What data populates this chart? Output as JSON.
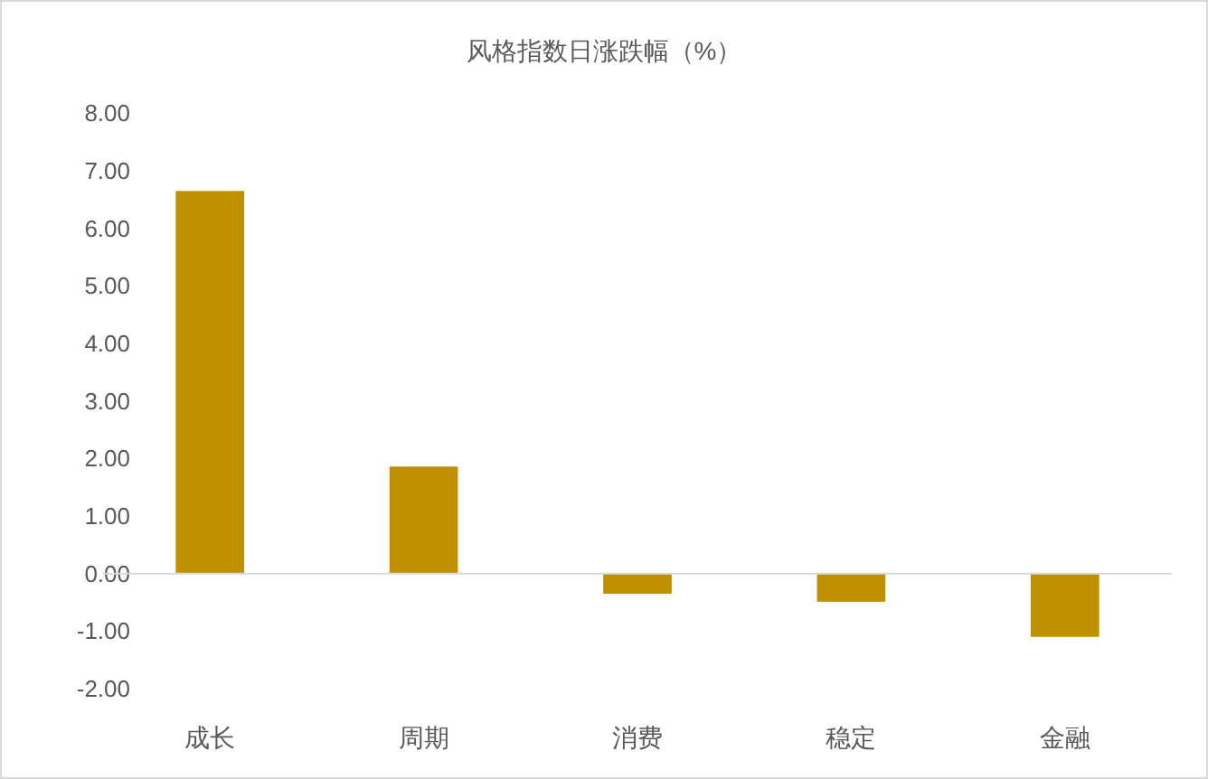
{
  "chart_data": {
    "type": "bar",
    "title": "风格指数日涨跌幅（%）",
    "categories": [
      "成长",
      "周期",
      "消费",
      "稳定",
      "金融"
    ],
    "values": [
      6.65,
      1.86,
      -0.35,
      -0.49,
      -1.1
    ],
    "color": "#bf9000",
    "ylim": [
      -2,
      8
    ],
    "yticks": [
      {
        "value": -2,
        "label": "-2.00"
      },
      {
        "value": -1,
        "label": "-1.00"
      },
      {
        "value": 0,
        "label": "0.00"
      },
      {
        "value": 1,
        "label": "1.00"
      },
      {
        "value": 2,
        "label": "2.00"
      },
      {
        "value": 3,
        "label": "3.00"
      },
      {
        "value": 4,
        "label": "4.00"
      },
      {
        "value": 5,
        "label": "5.00"
      },
      {
        "value": 6,
        "label": "6.00"
      },
      {
        "value": 7,
        "label": "7.00"
      },
      {
        "value": 8,
        "label": "8.00"
      }
    ]
  }
}
